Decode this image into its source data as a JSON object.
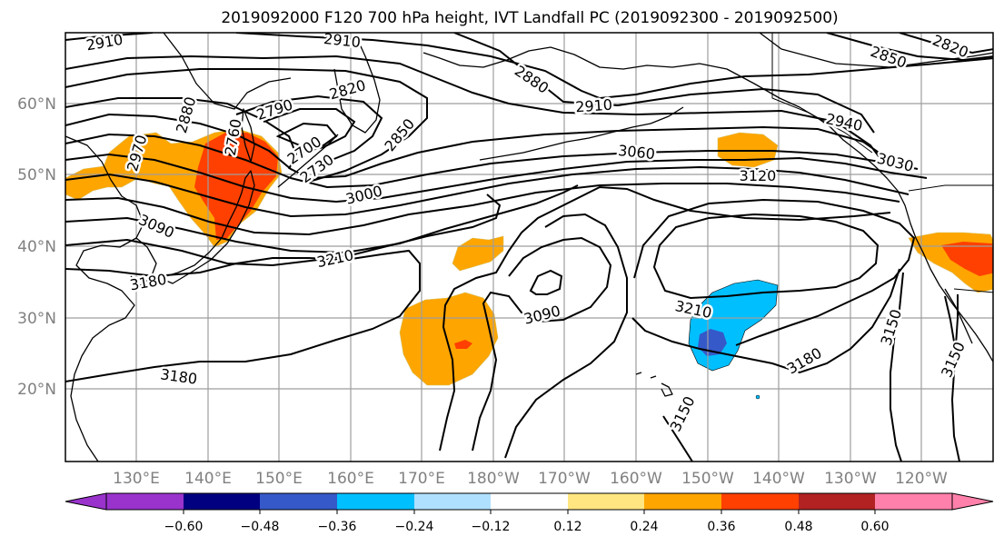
{
  "title": "2019092000 F120 700 hPa height, IVT Landfall PC (2019092300 - 2019092500)",
  "lat_labels": [
    "60°N",
    "50°N",
    "40°N",
    "30°N",
    "20°N"
  ],
  "lon_labels": [
    "130°E",
    "140°E",
    "150°E",
    "160°E",
    "170°E",
    "180°W",
    "170°W",
    "160°W",
    "150°W",
    "140°W",
    "130°W",
    "120°W"
  ],
  "map": {
    "lon_range_east": [
      120,
      255
    ],
    "lat_range": [
      10,
      70
    ],
    "gridline_color": "#9e9e9e",
    "coast_color": "#000000"
  },
  "contour_labels": [
    "2910",
    "2910",
    "2880",
    "2850",
    "2820",
    "2880",
    "2910",
    "2940",
    "3030",
    "2790",
    "2820",
    "2970",
    "2760",
    "2700",
    "2730",
    "2850",
    "3060",
    "3120",
    "3000",
    "3090",
    "3180",
    "3210",
    "3090",
    "3210",
    "3180",
    "3150",
    "3150",
    "3180",
    "3150"
  ],
  "colorbar": {
    "ticks": [
      "−0.60",
      "−0.48",
      "−0.36",
      "−0.24",
      "−0.12",
      "0.12",
      "0.24",
      "0.36",
      "0.48",
      "0.60"
    ],
    "colors": [
      "#9933cc",
      "#000080",
      "#3559c8",
      "#00bfff",
      "#b0e0ff",
      "#ffffff",
      "#ffe680",
      "#ffa500",
      "#ff4000",
      "#b22222",
      "#ff80aa"
    ]
  }
}
